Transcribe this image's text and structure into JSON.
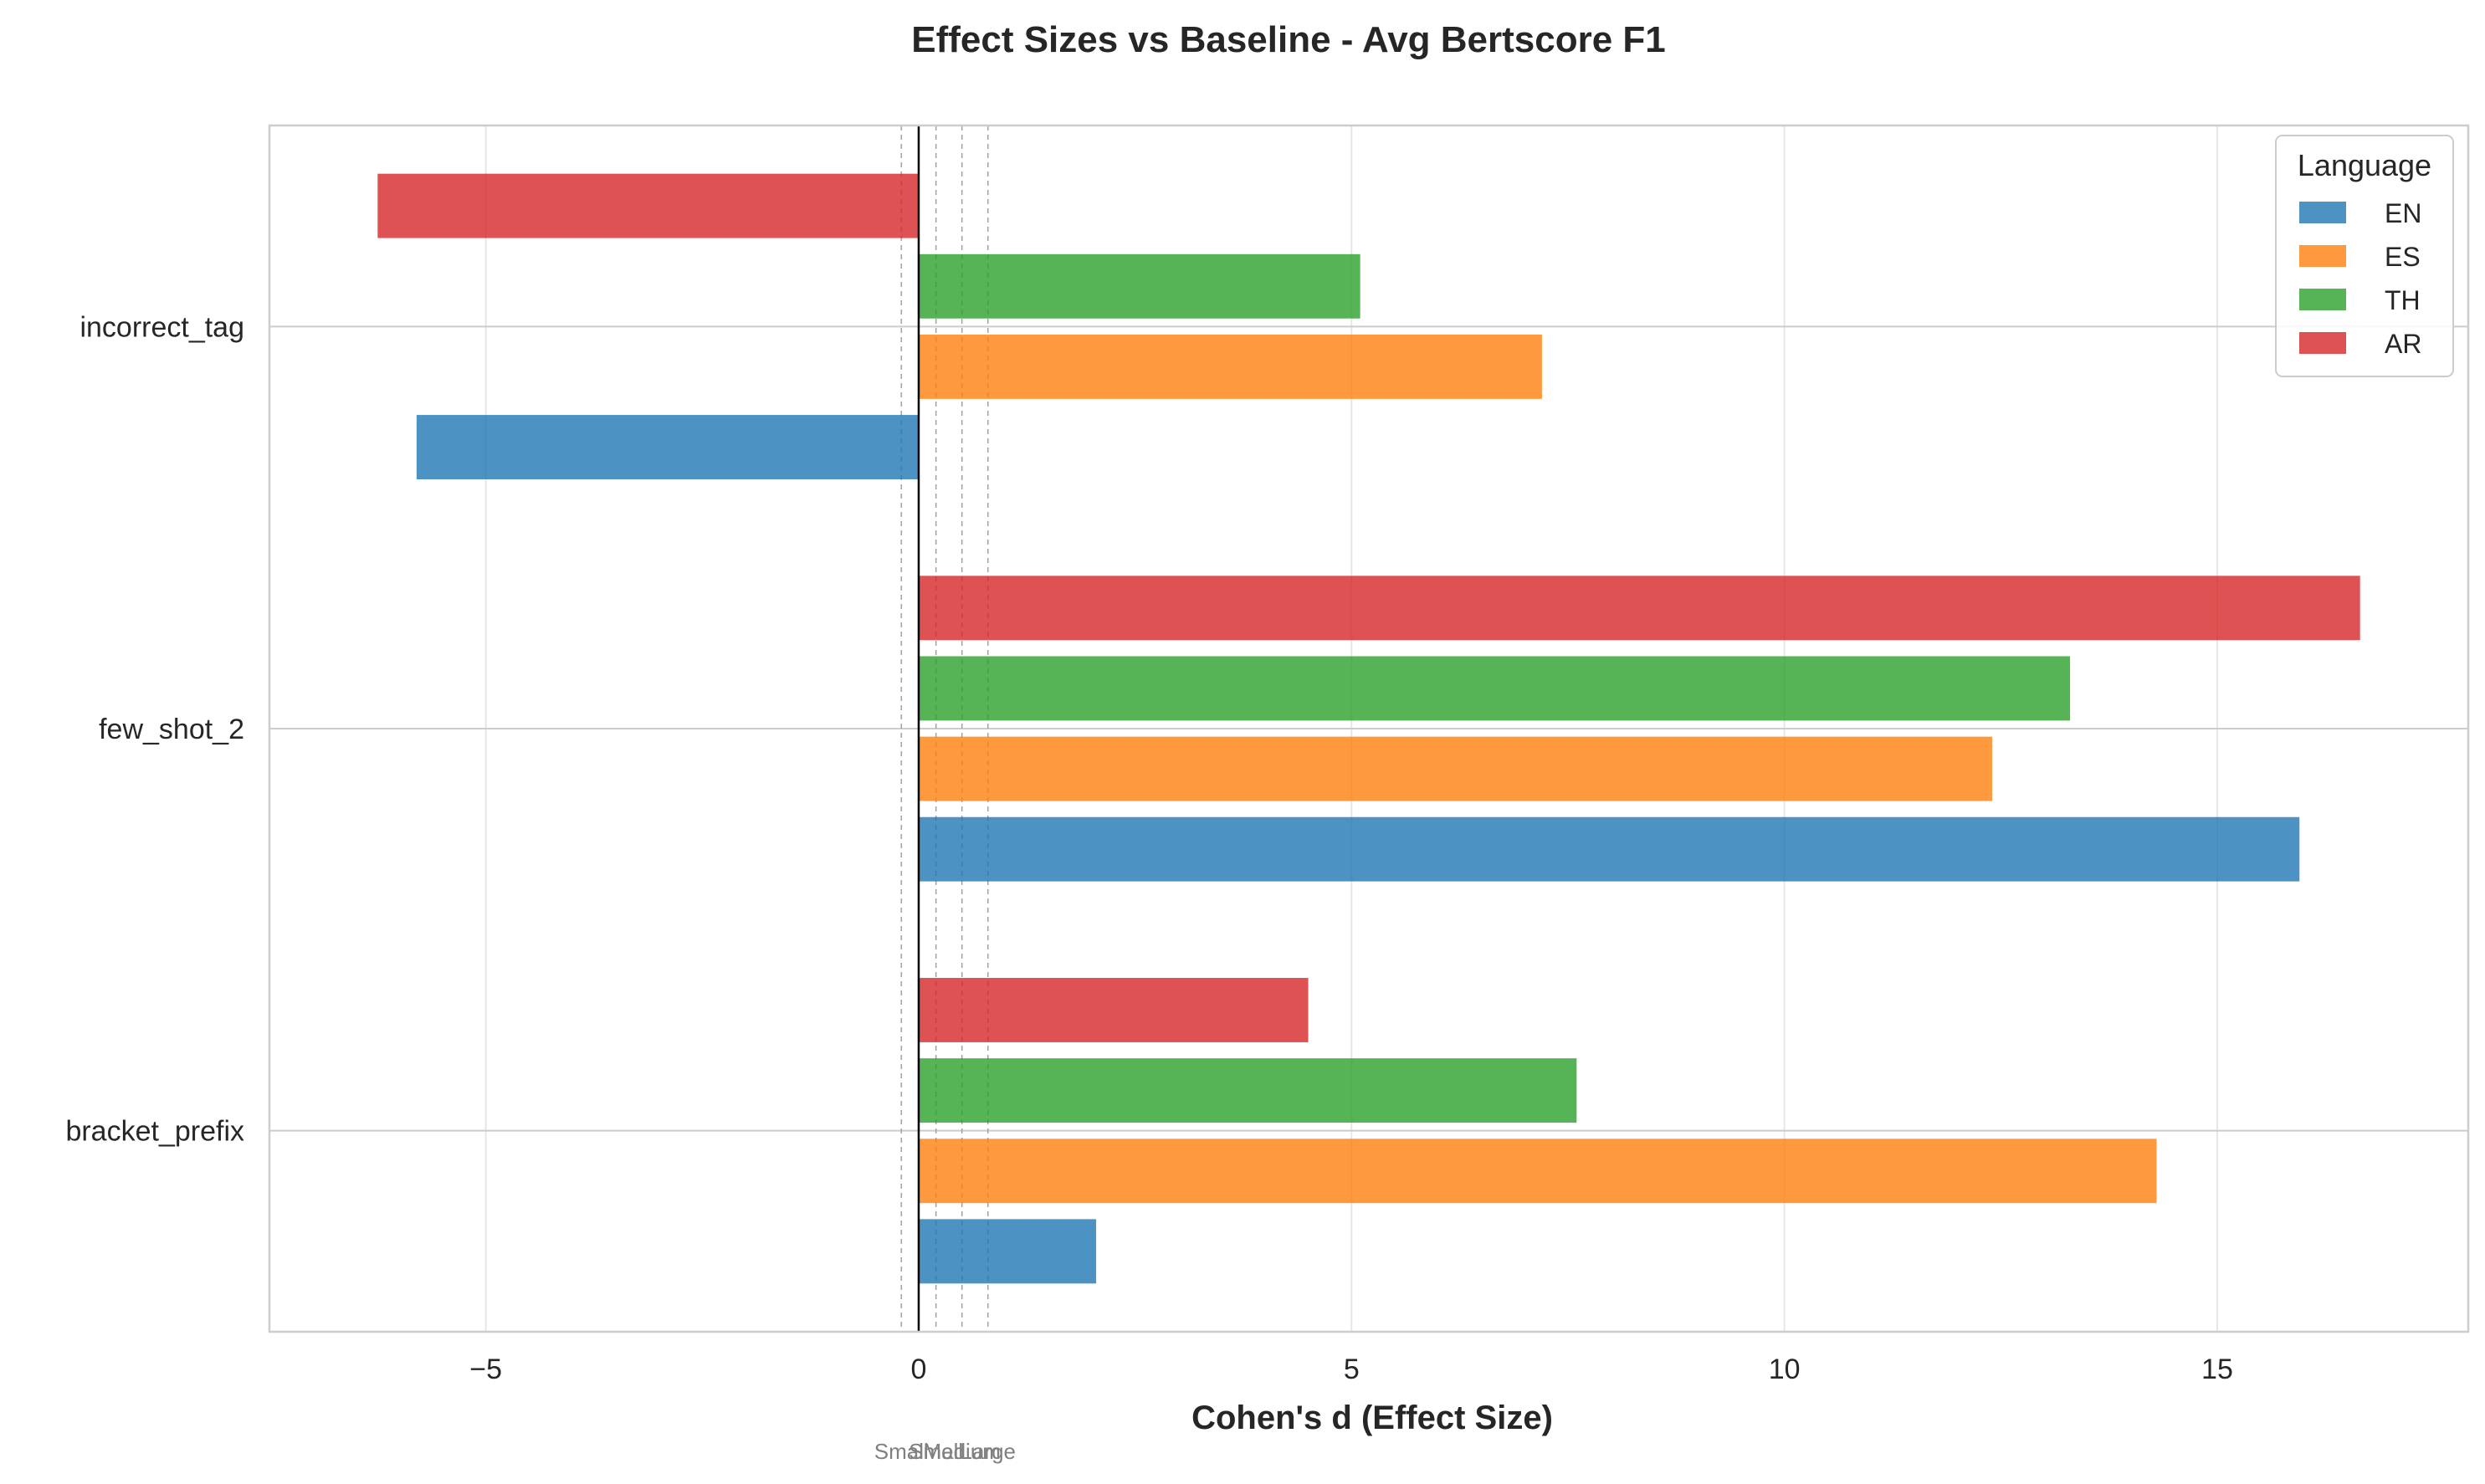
{
  "chart_data": {
    "type": "bar",
    "orientation": "horizontal",
    "title": "Effect Sizes vs Baseline - Avg Bertscore F1",
    "xlabel": "Cohen's d (Effect Size)",
    "ylabel": "",
    "xlim": [
      -7.5,
      17.9
    ],
    "xticks": [
      -5,
      0,
      5,
      10,
      15
    ],
    "xtick_labels": [
      "−5",
      "0",
      "5",
      "10",
      "15"
    ],
    "categories": [
      "bracket_prefix",
      "few_shot_2",
      "incorrect_tag"
    ],
    "series": [
      {
        "name": "EN",
        "color": "#1f77b4",
        "values": [
          2.05,
          15.95,
          -5.8
        ]
      },
      {
        "name": "ES",
        "color": "#ff7f0e",
        "values": [
          14.3,
          12.4,
          7.2
        ]
      },
      {
        "name": "TH",
        "color": "#2ca02c",
        "values": [
          7.6,
          13.3,
          5.1
        ]
      },
      {
        "name": "AR",
        "color": "#d62728",
        "values": [
          4.5,
          16.65,
          -6.25
        ]
      }
    ],
    "legend": {
      "title": "Language",
      "position": "top-right"
    },
    "grid": true,
    "reference_lines": [
      {
        "label": "Small",
        "value": -0.2
      },
      {
        "label": "Small",
        "value": 0.2
      },
      {
        "label": "Medium",
        "value": 0.5
      },
      {
        "label": "Large",
        "value": 0.8
      }
    ],
    "zero_line": true
  }
}
